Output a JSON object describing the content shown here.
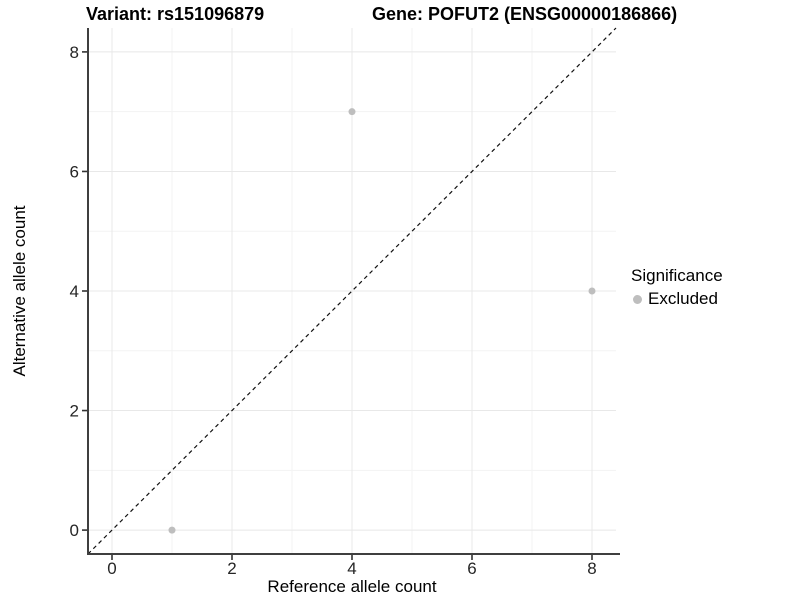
{
  "chart_data": {
    "type": "scatter",
    "title_variant": "Variant: rs151096879",
    "title_gene": "Gene: POFUT2 (ENSG00000186866)",
    "xlabel": "Reference allele count",
    "ylabel": "Alternative allele count",
    "xlim": [
      -0.4,
      8.4
    ],
    "ylim": [
      -0.4,
      8.4
    ],
    "x_ticks": [
      0,
      2,
      4,
      6,
      8
    ],
    "y_ticks": [
      0,
      2,
      4,
      6,
      8
    ],
    "x_minor_gridlines": [
      1,
      3,
      5,
      7
    ],
    "y_minor_gridlines": [
      1,
      3,
      5,
      7
    ],
    "grid": "major+minor",
    "identity_line": {
      "style": "dashed",
      "color": "#111111",
      "from": [
        -0.4,
        -0.4
      ],
      "to": [
        8.4,
        8.4
      ]
    },
    "series": [
      {
        "name": "Excluded",
        "color": "#bebebe",
        "point_radius": 3.5,
        "points": [
          {
            "x": 1,
            "y": 0
          },
          {
            "x": 4,
            "y": 7
          },
          {
            "x": 8,
            "y": 4
          }
        ]
      }
    ],
    "legend": {
      "title": "Significance",
      "position": "right",
      "items": [
        {
          "label": "Excluded",
          "color": "#bebebe",
          "marker": "circle"
        }
      ]
    },
    "style": {
      "background": "#ffffff",
      "axis_line_color": "#3f3f3f",
      "tick_mark_color": "#333333",
      "tick_label_color": "#262626",
      "grid_major_color": "#e8e8e8",
      "grid_minor_color": "#f3f3f3"
    }
  }
}
